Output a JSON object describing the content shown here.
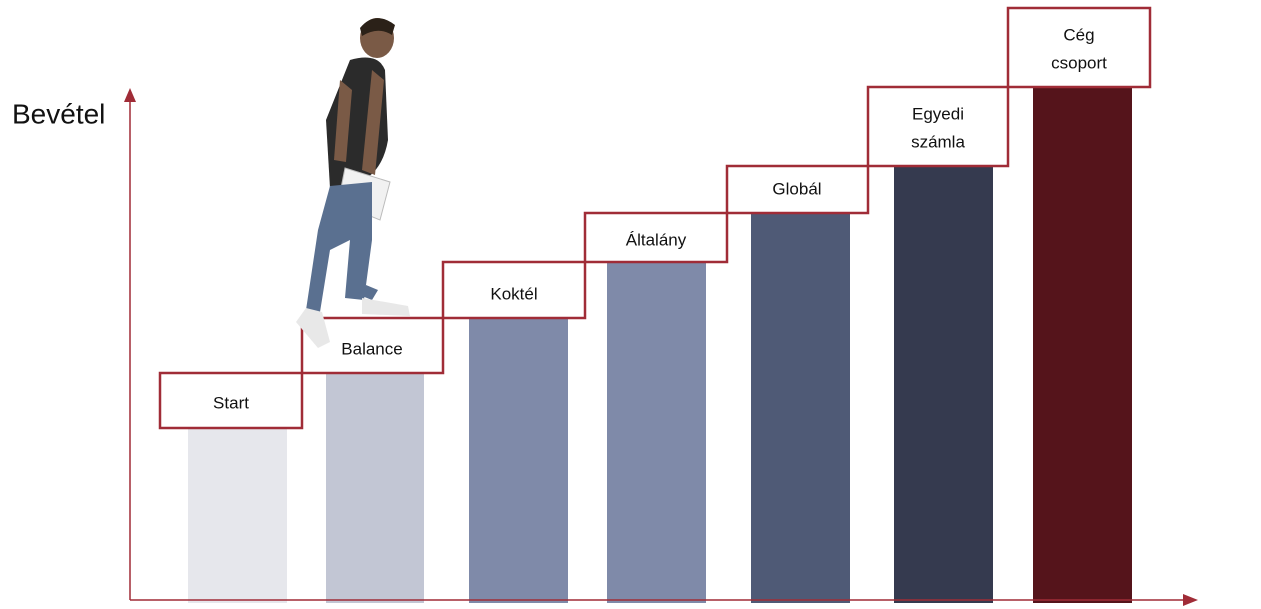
{
  "axis_label": "Bevétel",
  "steps": [
    {
      "label": [
        "Start"
      ]
    },
    {
      "label": [
        "Balance"
      ]
    },
    {
      "label": [
        "Koktél"
      ]
    },
    {
      "label": [
        "Általány"
      ]
    },
    {
      "label": [
        "Globál"
      ]
    },
    {
      "label": [
        "Egyedi",
        "számla"
      ]
    },
    {
      "label": [
        "Cég",
        "csoport"
      ]
    }
  ]
}
